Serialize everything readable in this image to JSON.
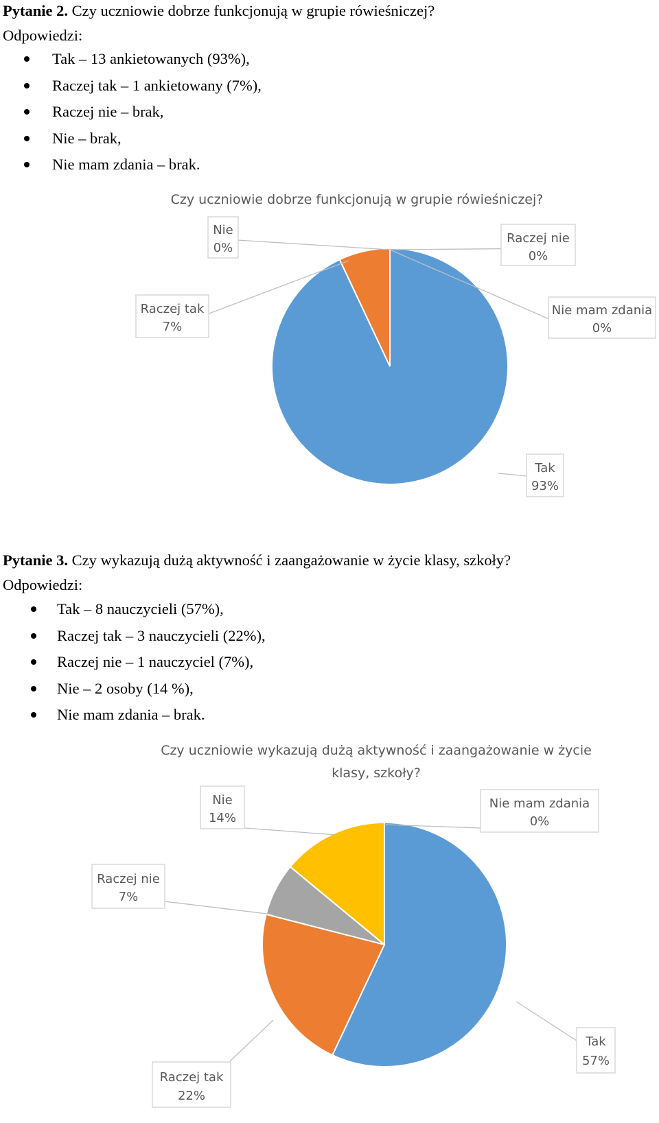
{
  "section1": {
    "heading_bold": "Pytanie 2.",
    "heading_text": " Czy uczniowie dobrze funkcjonują w grupie rówieśniczej?",
    "answers_label": "Odpowiedzi:",
    "items": [
      "Tak – 13 ankietowanych (93%),",
      "Raczej tak – 1 ankietowany (7%),",
      "Raczej nie – brak,",
      "Nie – brak,",
      "Nie mam zdania – brak."
    ]
  },
  "section2": {
    "heading_bold": "Pytanie 3.",
    "heading_text": " Czy wykazują dużą aktywność i zaangażowanie w życie klasy, szkoły?",
    "answers_label": "Odpowiedzi:",
    "items": [
      "Tak – 8 nauczycieli (57%),",
      "Raczej tak – 3 nauczycieli (22%),",
      "Raczej nie – 1 nauczyciel (7%),",
      "Nie – 2 osoby (14 %),",
      "Nie mam zdania – brak."
    ]
  },
  "chart_data": [
    {
      "type": "pie",
      "title": "Czy uczniowie dobrze funkcjonują w grupie rówieśniczej?",
      "categories": [
        "Tak",
        "Raczej tak",
        "Nie",
        "Raczej nie",
        "Nie mam zdania"
      ],
      "values": [
        93,
        7,
        0,
        0,
        0
      ],
      "value_labels": [
        "93%",
        "7%",
        "0%",
        "0%",
        "0%"
      ],
      "colors": [
        "#5B9BD5",
        "#ED7D31",
        "#FFC000",
        "#A5A5A5",
        "#4472C4"
      ]
    },
    {
      "type": "pie",
      "title_lines": [
        "Czy uczniowie wykazują dużą aktywność i zaangażowanie w życie",
        "klasy, szkoły?"
      ],
      "categories": [
        "Tak",
        "Raczej tak",
        "Raczej nie",
        "Nie",
        "Nie mam zdania"
      ],
      "values": [
        57,
        22,
        7,
        14,
        0
      ],
      "value_labels": [
        "57%",
        "22%",
        "7%",
        "14%",
        "0%"
      ],
      "colors": [
        "#5B9BD5",
        "#ED7D31",
        "#A5A5A5",
        "#FFC000",
        "#4472C4"
      ]
    }
  ]
}
